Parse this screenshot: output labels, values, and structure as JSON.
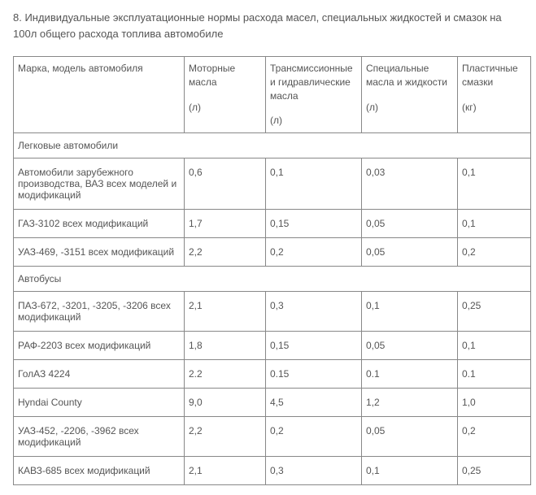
{
  "title": "8. Индивидуальные эксплуатационные нормы расхода масел, специальных жидкостей и смазок на 100л общего расхода топлива автомобиле",
  "table": {
    "headers": {
      "name": {
        "label": "Марка, модель автомобиля",
        "unit": ""
      },
      "motor": {
        "label": "Моторные масла",
        "unit": "(л)"
      },
      "trans": {
        "label": "Трансмиссионные и гидравлические масла",
        "unit": "(л)"
      },
      "special": {
        "label": "Специальные масла и жидкости",
        "unit": "(л)"
      },
      "plastic": {
        "label": "Пластичные смазки",
        "unit": "(кг)"
      }
    },
    "sections": [
      {
        "title": "Легковые автомобили",
        "rows": [
          {
            "name": "Автомобили зарубежного производства, ВАЗ всех моделей и модификаций",
            "motor": "0,6",
            "trans": "0,1",
            "special": "0,03",
            "plastic": "0,1"
          },
          {
            "name": "ГАЗ-3102 всех модификаций",
            "motor": "1,7",
            "trans": "0,15",
            "special": "0,05",
            "plastic": "0,1"
          },
          {
            "name": "УАЗ-469, -3151 всех модификаций",
            "motor": "2,2",
            "trans": "0,2",
            "special": "0,05",
            "plastic": "0,2"
          }
        ]
      },
      {
        "title": "Автобусы",
        "rows": [
          {
            "name": "ПАЗ-672, -3201, -3205, -3206 всех модификаций",
            "motor": "2,1",
            "trans": "0,3",
            "special": "0,1",
            "plastic": "0,25"
          },
          {
            "name": "РАФ-2203 всех модификаций",
            "motor": "1,8",
            "trans": "0,15",
            "special": "0,05",
            "plastic": "0,1"
          },
          {
            "name": "ГолАЗ 4224",
            "motor": "2.2",
            "trans": "0.15",
            "special": "0.1",
            "plastic": "0.1"
          },
          {
            "name": "Hyndai County",
            "motor": "9,0",
            "trans": "4,5",
            "special": "1,2",
            "plastic": "1,0"
          },
          {
            "name": "УАЗ-452, -2206, -3962 всех модификаций",
            "motor": "2,2",
            "trans": "0,2",
            "special": "0,05",
            "plastic": "0,2"
          },
          {
            "name": "КАВЗ-685 всех модификаций",
            "motor": "2,1",
            "trans": "0,3",
            "special": "0,1",
            "plastic": "0,25"
          }
        ]
      }
    ],
    "colors": {
      "text": "#555555",
      "border": "#888888",
      "background": "#ffffff"
    }
  }
}
